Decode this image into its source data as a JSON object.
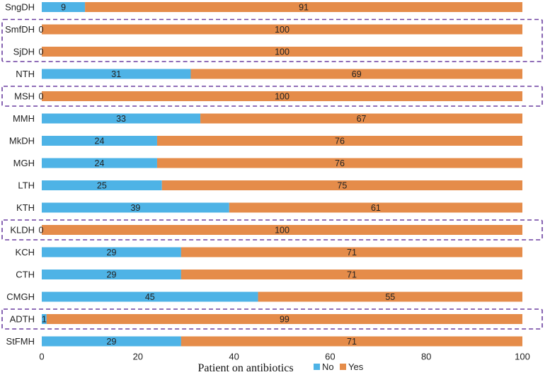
{
  "chart_data": {
    "type": "bar",
    "orientation": "horizontal",
    "stacked": true,
    "title": "",
    "xlabel": "Patient on antibiotics",
    "ylabel": "",
    "xlim": [
      0,
      100
    ],
    "x_ticks": [
      0,
      20,
      40,
      60,
      80,
      100
    ],
    "grid": false,
    "legend_position": "bottom",
    "categories": [
      "SngDH",
      "SmfDH",
      "SjDH",
      "NTH",
      "MSH",
      "MMH",
      "MkDH",
      "MGH",
      "LTH",
      "KTH",
      "KLDH",
      "KCH",
      "CTH",
      "CMGH",
      "ADTH",
      "StFMH"
    ],
    "series": [
      {
        "name": "No",
        "color": "#4eb3e6",
        "values": [
          9,
          0,
          0,
          31,
          0,
          33,
          24,
          24,
          25,
          39,
          0,
          29,
          29,
          45,
          1,
          29
        ]
      },
      {
        "name": "Yes",
        "color": "#e58c4a",
        "values": [
          91,
          100,
          100,
          69,
          100,
          67,
          76,
          76,
          75,
          61,
          100,
          71,
          71,
          55,
          99,
          71
        ]
      }
    ],
    "highlight_color": "#6b3fa0",
    "highlight_groups": [
      [
        "SmfDH",
        "SjDH"
      ],
      [
        "MSH"
      ],
      [
        "KLDH"
      ],
      [
        "ADTH"
      ]
    ]
  }
}
